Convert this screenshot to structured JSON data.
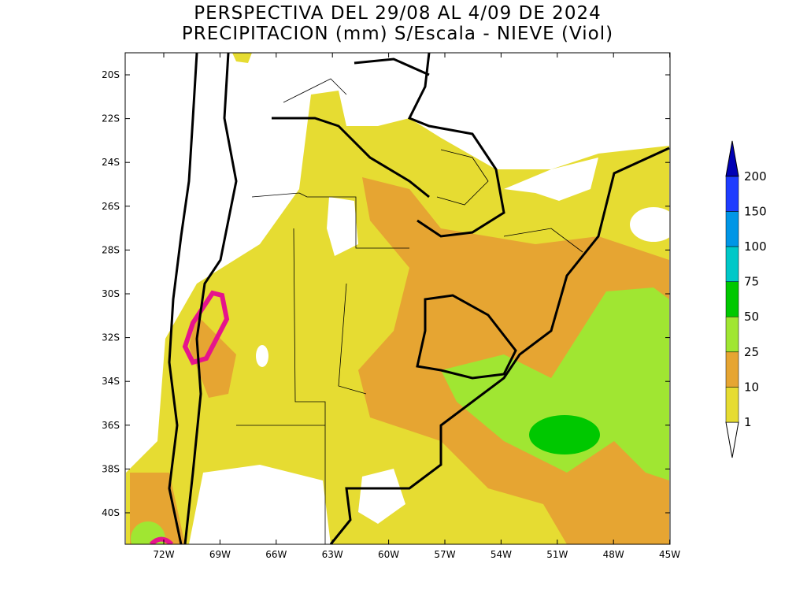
{
  "title": [
    "PERSPECTIVA DEL 29/08 AL 4/09 DE 2024",
    "PRECIPITACION (mm) S/Escala - NIEVE (Viol)"
  ],
  "map": {
    "lat_labels": [
      "20S",
      "22S",
      "24S",
      "26S",
      "28S",
      "30S",
      "32S",
      "34S",
      "36S",
      "38S",
      "40S"
    ],
    "lon_labels": [
      "72W",
      "69W",
      "66W",
      "63W",
      "60W",
      "57W",
      "54W",
      "51W",
      "48W",
      "45W"
    ]
  },
  "legend": {
    "levels": [
      1,
      10,
      25,
      50,
      75,
      100,
      150,
      200
    ],
    "colors": [
      "#ffffff",
      "#e6dc32",
      "#e6a532",
      "#a0e632",
      "#00c800",
      "#00c8c8",
      "#0096e6",
      "#1e3cff",
      "#0000b4"
    ]
  }
}
